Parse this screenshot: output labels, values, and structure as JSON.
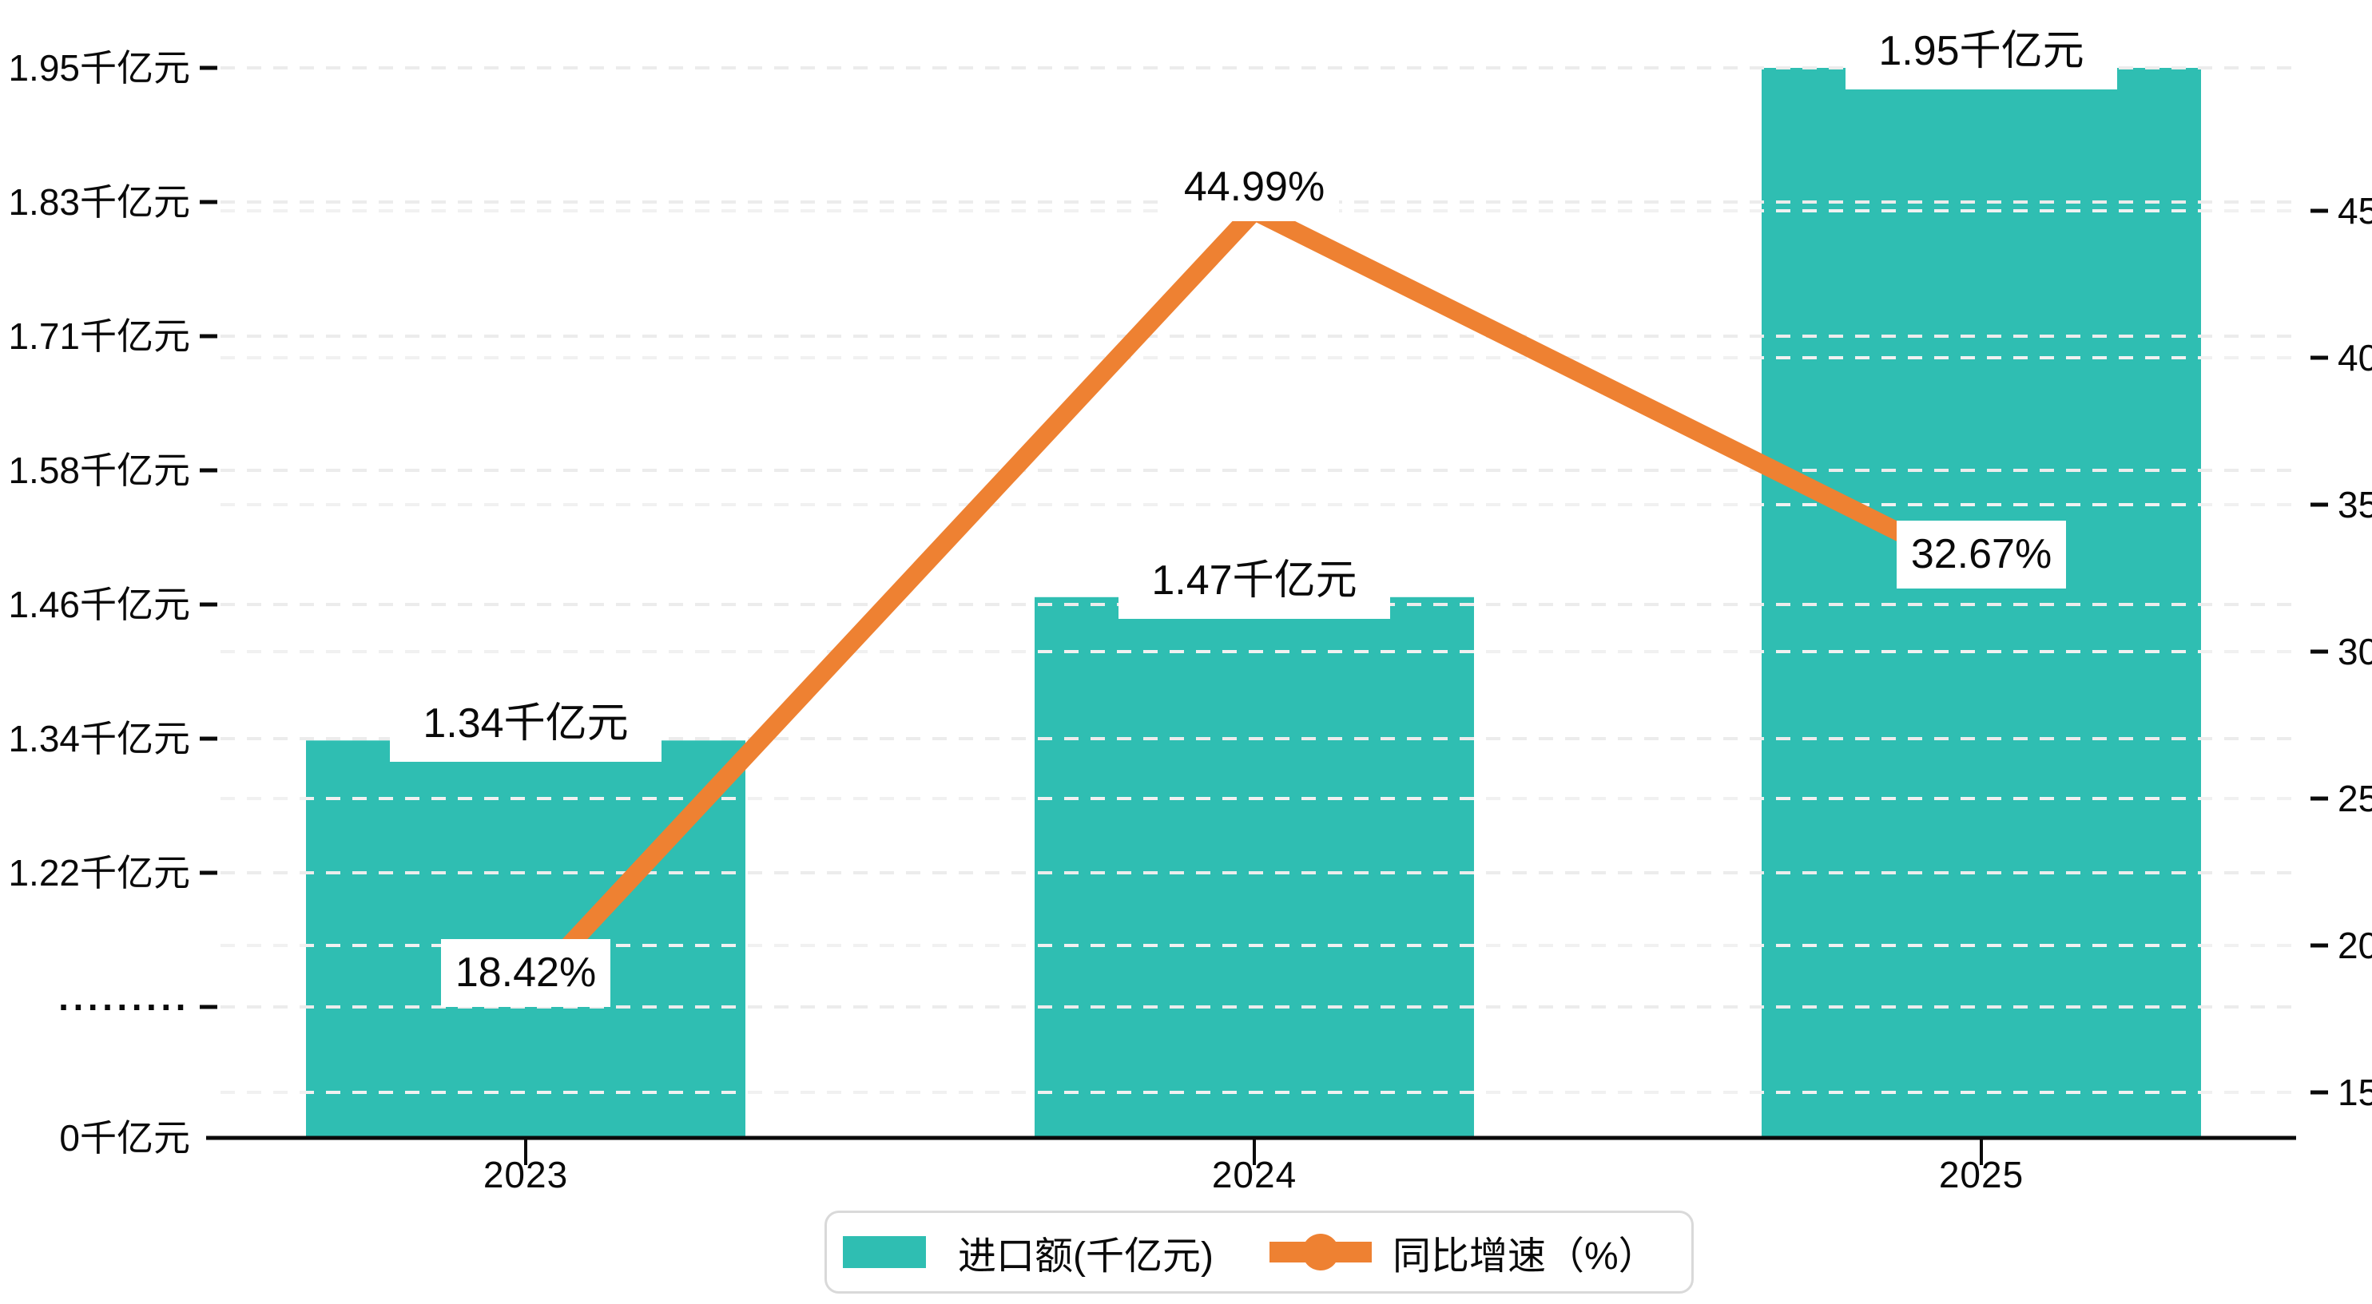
{
  "chart_data": {
    "type": "bar",
    "subtype": "bar-line-combo",
    "categories": [
      "2023",
      "2024",
      "2025"
    ],
    "series": [
      {
        "name": "进口额(千亿元)",
        "type": "bar",
        "color": "#2FBEB2",
        "unit": "千亿元",
        "values": [
          1.34,
          1.47,
          1.95
        ],
        "labels": [
          "1.34千亿元",
          "1.47千亿元",
          "1.95千亿元"
        ]
      },
      {
        "name": "同比增速（%）",
        "type": "line",
        "color": "#EE8132",
        "unit": "%",
        "values": [
          18.42,
          44.99,
          32.67
        ],
        "labels": [
          "18.42%",
          "44.99%",
          "32.67%"
        ]
      }
    ],
    "left_axis_ticks": [
      "1.95千亿元",
      "1.83千亿元",
      "1.71千亿元",
      "1.58千亿元",
      "1.46千亿元",
      "1.34千亿元",
      "1.22千亿元",
      "·········",
      "0千亿元"
    ],
    "right_axis_ticks": [
      "45",
      "40",
      "35",
      "30",
      "25",
      "20",
      "15"
    ],
    "x_axis_ticks": [
      "2023",
      "2024",
      "2025"
    ],
    "legend": {
      "position": "bottom",
      "items": [
        {
          "label": "进口额(千亿元)",
          "marker": "bar-swatch"
        },
        {
          "label": "同比增速（%）",
          "marker": "line-dot"
        }
      ]
    },
    "layout_hints": {
      "grid": "dashed",
      "left_axis_break": true,
      "right_axis_range": [
        15,
        45
      ]
    },
    "colors": {
      "bar": "#2FBEB2",
      "line": "#EE8132",
      "grid_left": "#ececec",
      "grid_right": "#f1f1f1",
      "axis": "#0a0a0a",
      "label_bg": "#ffffff",
      "legend_border": "#d9d9d9",
      "background": "#ffffff"
    }
  }
}
